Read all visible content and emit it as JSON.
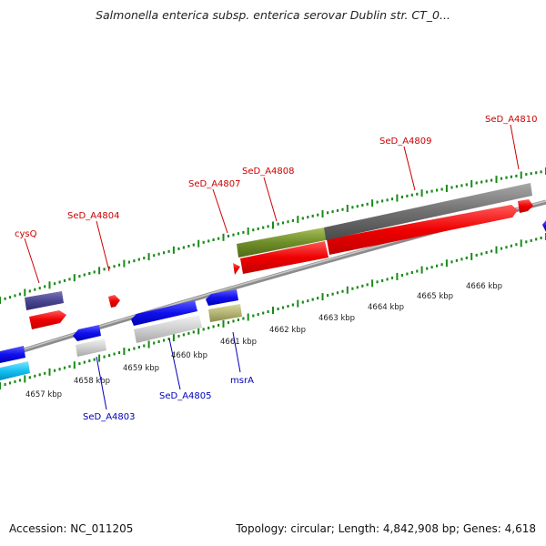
{
  "title": "Salmonella enterica subsp. enterica serovar Dublin str. CT_0...",
  "footer": {
    "accession": "Accession: NC_011205",
    "stats": "Topology: circular; Length: 4,842,908 bp; Genes: 4,618"
  },
  "colors": {
    "forward_gene": "#ff1a1a",
    "reverse_gene": "#1a1aee",
    "tick": "#1a8a1a",
    "backbone": "#999999",
    "forward_label": "#cc0000",
    "reverse_label": "#0000bb"
  },
  "scale_labels": [
    "4657 kbp",
    "4658 kbp",
    "4659 kbp",
    "4660 kbp",
    "4661 kbp",
    "4662 kbp",
    "4663 kbp",
    "4664 kbp",
    "4665 kbp",
    "4666 kbp"
  ],
  "forward_gene_labels": [
    "cysQ",
    "SeD_A4804",
    "SeD_A4807",
    "SeD_A4808",
    "SeD_A4809",
    "SeD_A4810"
  ],
  "reverse_gene_labels": [
    "SeD_A4803",
    "SeD_A4805",
    "msrA"
  ]
}
